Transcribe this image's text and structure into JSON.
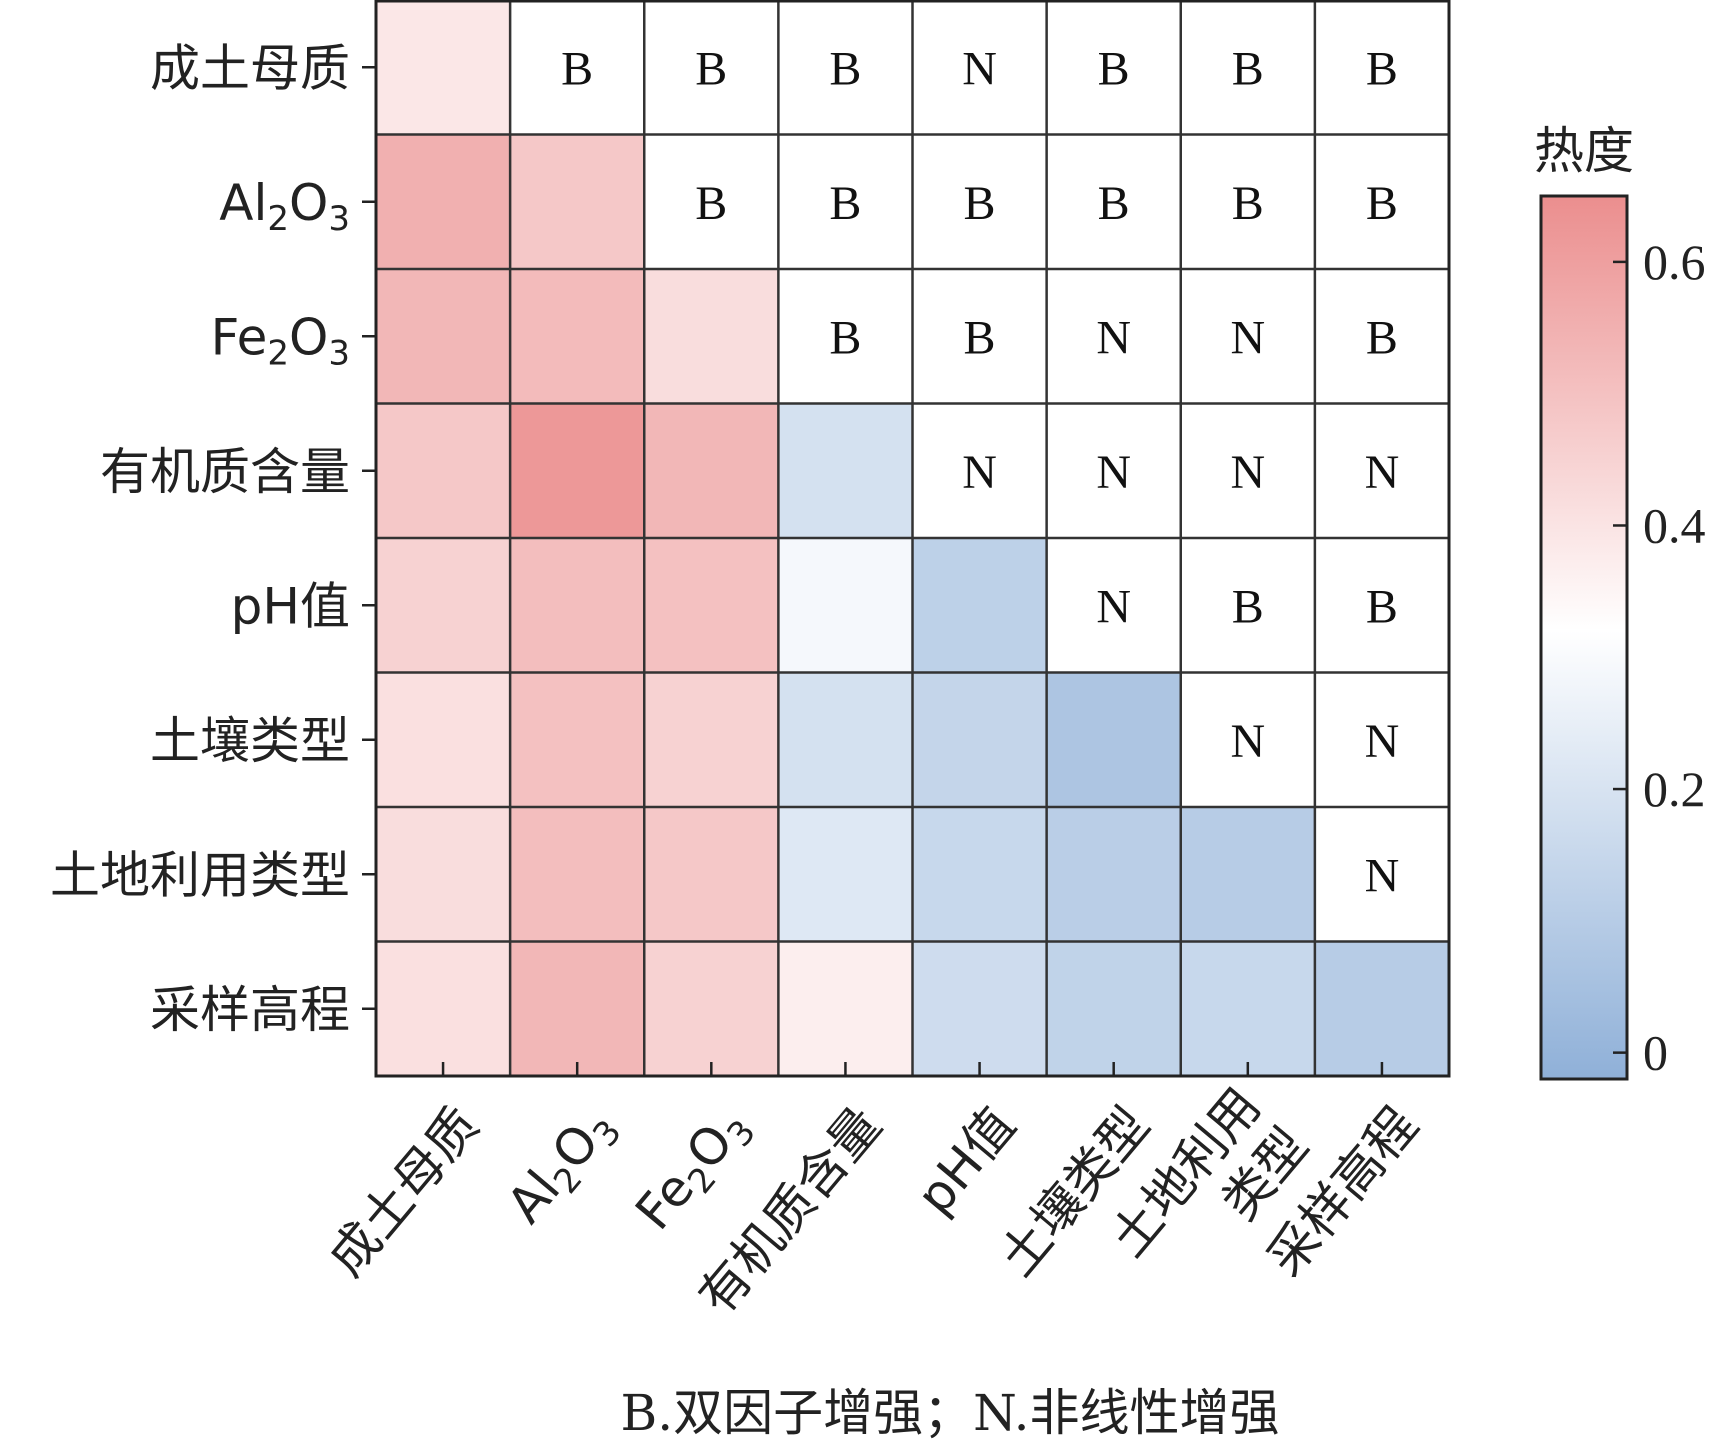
{
  "chart_data": {
    "type": "heatmap",
    "rows": [
      "成土母质",
      "Al2O3",
      "Fe2O3",
      "有机质含量",
      "pH值",
      "土壤类型",
      "土地利用类型",
      "采样高程"
    ],
    "columns": [
      "成土母质",
      "Al2O3",
      "Fe2O3",
      "有机质含量",
      "pH值",
      "土壤类型",
      "土地利用\n类型",
      "采样高程"
    ],
    "values": [
      [
        0.39,
        null,
        null,
        null,
        null,
        null,
        null,
        null
      ],
      [
        0.55,
        0.48,
        null,
        null,
        null,
        null,
        null,
        null
      ],
      [
        0.53,
        0.52,
        0.42,
        null,
        null,
        null,
        null,
        null
      ],
      [
        0.48,
        0.62,
        0.53,
        0.19,
        null,
        null,
        null,
        null
      ],
      [
        0.45,
        0.51,
        0.5,
        0.29,
        0.12,
        null,
        null,
        null
      ],
      [
        0.41,
        0.5,
        0.45,
        0.19,
        0.14,
        0.07,
        null,
        null
      ],
      [
        0.42,
        0.51,
        0.48,
        0.22,
        0.15,
        0.11,
        0.1,
        null
      ],
      [
        0.41,
        0.53,
        0.45,
        0.37,
        0.17,
        0.13,
        0.15,
        0.1
      ]
    ],
    "interactions": [
      [
        "",
        "B",
        "B",
        "B",
        "N",
        "B",
        "B",
        "B"
      ],
      [
        "",
        "",
        "B",
        "B",
        "B",
        "B",
        "B",
        "B"
      ],
      [
        "",
        "",
        "",
        "B",
        "B",
        "N",
        "N",
        "B"
      ],
      [
        "",
        "",
        "",
        "",
        "N",
        "N",
        "N",
        "N"
      ],
      [
        "",
        "",
        "",
        "",
        "",
        "N",
        "B",
        "B"
      ],
      [
        "",
        "",
        "",
        "",
        "",
        "",
        "N",
        "N"
      ],
      [
        "",
        "",
        "",
        "",
        "",
        "",
        "",
        "N"
      ],
      [
        "",
        "",
        "",
        "",
        "",
        "",
        "",
        ""
      ]
    ],
    "colorbar": {
      "title": "热度",
      "range": [
        -0.02,
        0.65
      ],
      "ticks": [
        0,
        0.2,
        0.4,
        0.6
      ],
      "tick_labels": [
        "0",
        "0.2",
        "0.4",
        "0.6"
      ],
      "colors": {
        "low": "#8fb0d8",
        "mid": "#ffffff",
        "high": "#eb8e8e"
      },
      "mid_value": 0.32
    },
    "footnote": "B.双因子增强；N.非线性增强"
  }
}
